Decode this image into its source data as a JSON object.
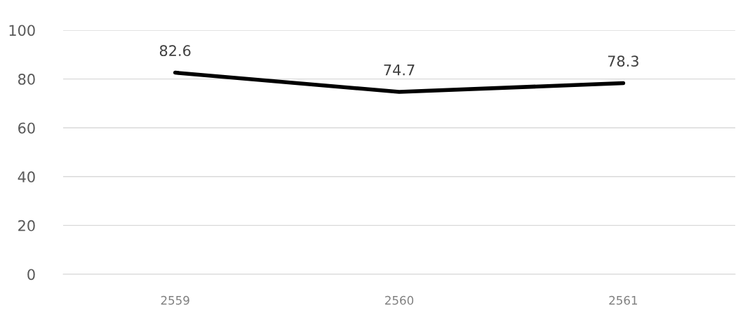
{
  "chart_data": {
    "type": "line",
    "categories": [
      "2559",
      "2560",
      "2561"
    ],
    "series": [
      {
        "color": "#000000",
        "values": [
          82.6,
          74.7,
          78.3
        ]
      }
    ],
    "ylim": [
      0,
      100
    ],
    "yticks": [
      0,
      20,
      40,
      60,
      80,
      100
    ],
    "grid": "y",
    "data_labels": true,
    "marker": "none",
    "line_style": "solid"
  }
}
